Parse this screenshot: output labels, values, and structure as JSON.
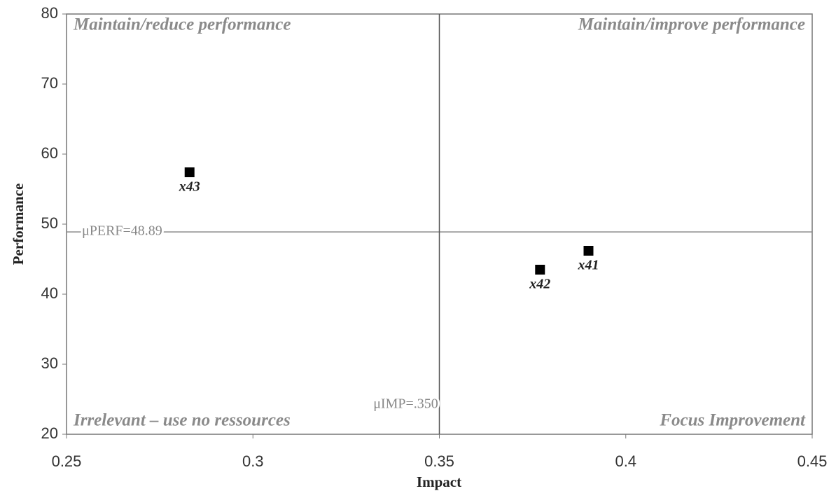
{
  "chart_data": {
    "type": "scatter",
    "xlabel": "Impact",
    "ylabel": "Performance",
    "x": [
      0.39,
      0.377,
      0.283
    ],
    "values": [
      46.2,
      43.5,
      57.4
    ],
    "point_labels": [
      "x41",
      "x42",
      "x43"
    ],
    "color": "#000000",
    "xlim": [
      0.25,
      0.45
    ],
    "xticks": [
      0.25,
      0.3,
      0.35,
      0.4,
      0.45
    ],
    "ylim": [
      20,
      80
    ],
    "yticks": [
      20,
      30,
      40,
      50,
      60,
      70,
      80
    ],
    "hline": {
      "value": 48.89,
      "label": "μPERF=48.89"
    },
    "vline": {
      "value": 0.35,
      "label": "μIMP=.350"
    },
    "quadrants": {
      "top_left": "Maintain/reduce performance",
      "top_right": "Maintain/improve performance",
      "bottom_left": "Irrelevant – use no ressources",
      "bottom_right": "Focus Improvement"
    }
  }
}
